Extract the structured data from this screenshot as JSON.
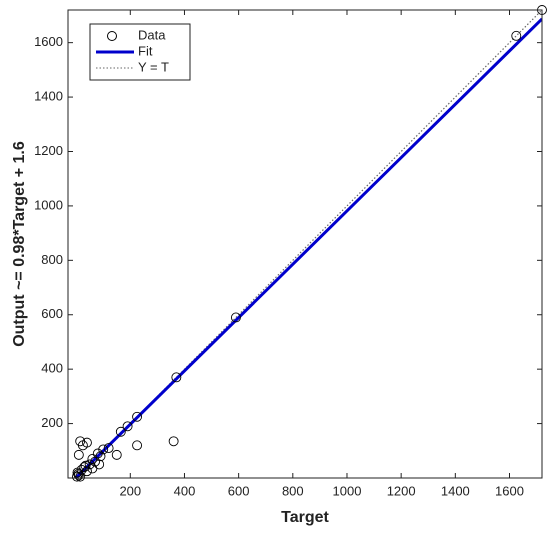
{
  "chart_data": {
    "type": "scatter",
    "xlabel": "Target",
    "ylabel": "Output ~= 0.98*Target + 1.6",
    "xlim": [
      -30,
      1720
    ],
    "ylim": [
      0,
      1720
    ],
    "xticks": [
      200,
      400,
      600,
      800,
      1000,
      1200,
      1400,
      1600
    ],
    "yticks": [
      200,
      400,
      600,
      800,
      1000,
      1200,
      1400,
      1600
    ],
    "legend_position": "upper left",
    "series": [
      {
        "name": "Data",
        "color": "#000000",
        "x": [
          1720,
          1625,
          590,
          370,
          360,
          225,
          225,
          190,
          165,
          150,
          100,
          90,
          85,
          40,
          15,
          25,
          10,
          5,
          10,
          20,
          30,
          50,
          60,
          70,
          40,
          3,
          8,
          15,
          35,
          80,
          120,
          60
        ],
        "values": [
          1720,
          1625,
          590,
          370,
          135,
          225,
          120,
          190,
          170,
          85,
          105,
          80,
          50,
          130,
          135,
          120,
          85,
          20,
          10,
          30,
          40,
          50,
          35,
          60,
          25,
          5,
          15,
          5,
          45,
          90,
          110,
          70
        ]
      },
      {
        "name": "Fit",
        "color": "#0000cc",
        "slope": 0.98,
        "intercept": 1.6
      },
      {
        "name": "Y = T",
        "color": "#666666"
      }
    ]
  }
}
